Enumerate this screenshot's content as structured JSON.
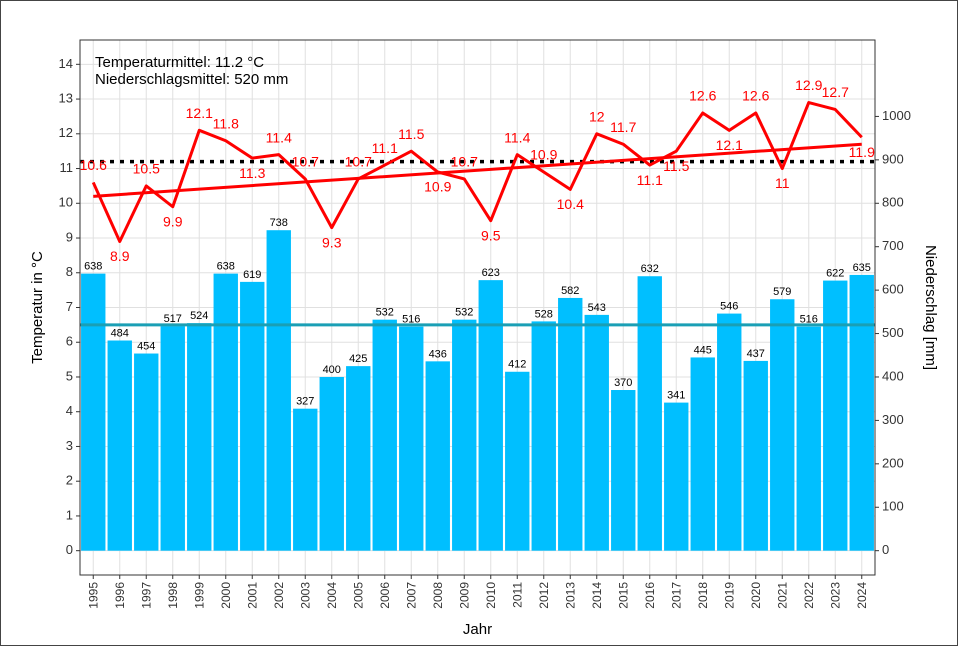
{
  "chart_data": {
    "type": "combo",
    "annotations": [
      "Temperaturmittel: 11.2 °C",
      "Niederschlagsmittel: 520 mm"
    ],
    "x_label": "Jahr",
    "y_label": "Temperatur in °C",
    "y2_label": "Niederschlag [mm]",
    "categories": [
      "1995",
      "1996",
      "1997",
      "1998",
      "1999",
      "2000",
      "2001",
      "2002",
      "2003",
      "2004",
      "2005",
      "2006",
      "2007",
      "2008",
      "2009",
      "2010",
      "2011",
      "2012",
      "2013",
      "2014",
      "2015",
      "2016",
      "2017",
      "2018",
      "2019",
      "2020",
      "2021",
      "2022",
      "2023",
      "2024"
    ],
    "series": [
      {
        "type": "bar",
        "axis": "y2",
        "color": "#00bfff",
        "values": [
          638,
          484,
          454,
          517,
          524,
          638,
          619,
          738,
          327,
          400,
          425,
          532,
          516,
          436,
          532,
          623,
          412,
          528,
          582,
          543,
          370,
          632,
          341,
          445,
          546,
          437,
          579,
          516,
          622,
          635
        ]
      },
      {
        "type": "line",
        "color": "#ff0000",
        "values": [
          10.6,
          8.9,
          10.5,
          9.9,
          12.1,
          11.8,
          11.3,
          11.4,
          10.7,
          9.3,
          10.7,
          11.1,
          11.5,
          10.9,
          10.7,
          9.5,
          11.4,
          10.9,
          10.4,
          12,
          11.7,
          11.1,
          11.5,
          12.6,
          12.1,
          12.6,
          11,
          12.9,
          12.7,
          11.9
        ]
      }
    ],
    "trend": {
      "color": "#ff0000",
      "values": [
        10.2,
        11.7
      ]
    },
    "mean_temperature": {
      "value": 11.2,
      "color": "#000000"
    },
    "mean_precipitation": {
      "value": 520,
      "color": "#1a9fb5"
    },
    "ylim": [
      -0.7,
      14.7
    ],
    "yticks": [
      0,
      1,
      2,
      3,
      4,
      5,
      6,
      7,
      8,
      9,
      10,
      11,
      12,
      13,
      14
    ],
    "y2lim": [
      -56,
      1176
    ],
    "y2ticks": [
      0,
      100,
      200,
      300,
      400,
      500,
      600,
      700,
      800,
      900,
      1000
    ],
    "grid": true
  }
}
